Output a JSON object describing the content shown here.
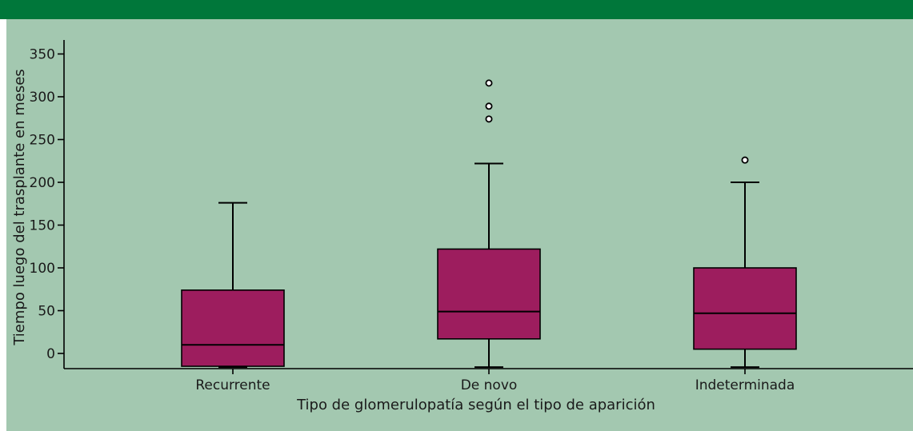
{
  "colors": {
    "top_bar": "#00773a",
    "panel": "#a3c8b0",
    "box_fill": "#9d1d5e",
    "line": "#000000",
    "outlier_fill": "#ffffff"
  },
  "chart_data": {
    "type": "boxplot",
    "title": "",
    "xlabel": "Tipo de glomerulopatía según el tipo de aparición",
    "ylabel": "Tiempo luego del trasplante en meses",
    "ylim": [
      -18,
      355
    ],
    "yticks": [
      0,
      50,
      100,
      150,
      200,
      250,
      300,
      350
    ],
    "grid": false,
    "categories": [
      "Recurrente",
      "De novo",
      "Indeterminada"
    ],
    "boxes": [
      {
        "category": "Recurrente",
        "min": -16,
        "q1": -15,
        "median": 10,
        "q3": 74,
        "max": 176,
        "outliers": []
      },
      {
        "category": "De novo",
        "min": -16,
        "q1": 17,
        "median": 49,
        "q3": 122,
        "max": 222,
        "outliers": [
          274,
          289,
          316
        ]
      },
      {
        "category": "Indeterminada",
        "min": -16,
        "q1": 5,
        "median": 47,
        "q3": 100,
        "max": 200,
        "outliers": [
          226
        ]
      }
    ]
  }
}
